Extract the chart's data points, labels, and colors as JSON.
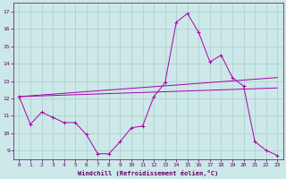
{
  "xlabel": "Windchill (Refroidissement éolien,°C)",
  "ylabel": "",
  "bg_color": "#cce8e8",
  "line_color": "#aa00aa",
  "grid_color": "#aacccc",
  "ylim": [
    8.5,
    17.5
  ],
  "xlim": [
    -0.5,
    23.5
  ],
  "yticks": [
    9,
    10,
    11,
    12,
    13,
    14,
    15,
    16,
    17
  ],
  "xticks": [
    0,
    1,
    2,
    3,
    4,
    5,
    6,
    7,
    8,
    9,
    10,
    11,
    12,
    13,
    14,
    15,
    16,
    17,
    18,
    19,
    20,
    21,
    22,
    23
  ],
  "series1_x": [
    0,
    1,
    2,
    3,
    4,
    5,
    6,
    7,
    8,
    9,
    10,
    11,
    12,
    13,
    14,
    15,
    16,
    17,
    18,
    19,
    20,
    21,
    22,
    23
  ],
  "series1_y": [
    12.1,
    10.5,
    11.2,
    10.9,
    10.6,
    10.6,
    9.9,
    8.8,
    8.8,
    9.5,
    10.3,
    10.4,
    12.1,
    12.9,
    16.4,
    16.9,
    15.8,
    14.1,
    14.5,
    13.2,
    12.7,
    9.5,
    9.0,
    8.7
  ],
  "series2_x": [
    0,
    23
  ],
  "series2_y": [
    12.1,
    13.2
  ],
  "series3_x": [
    0,
    23
  ],
  "series3_y": [
    12.1,
    12.6
  ],
  "tick_color": "#660066",
  "label_color": "#660066",
  "spine_color": "#660066"
}
